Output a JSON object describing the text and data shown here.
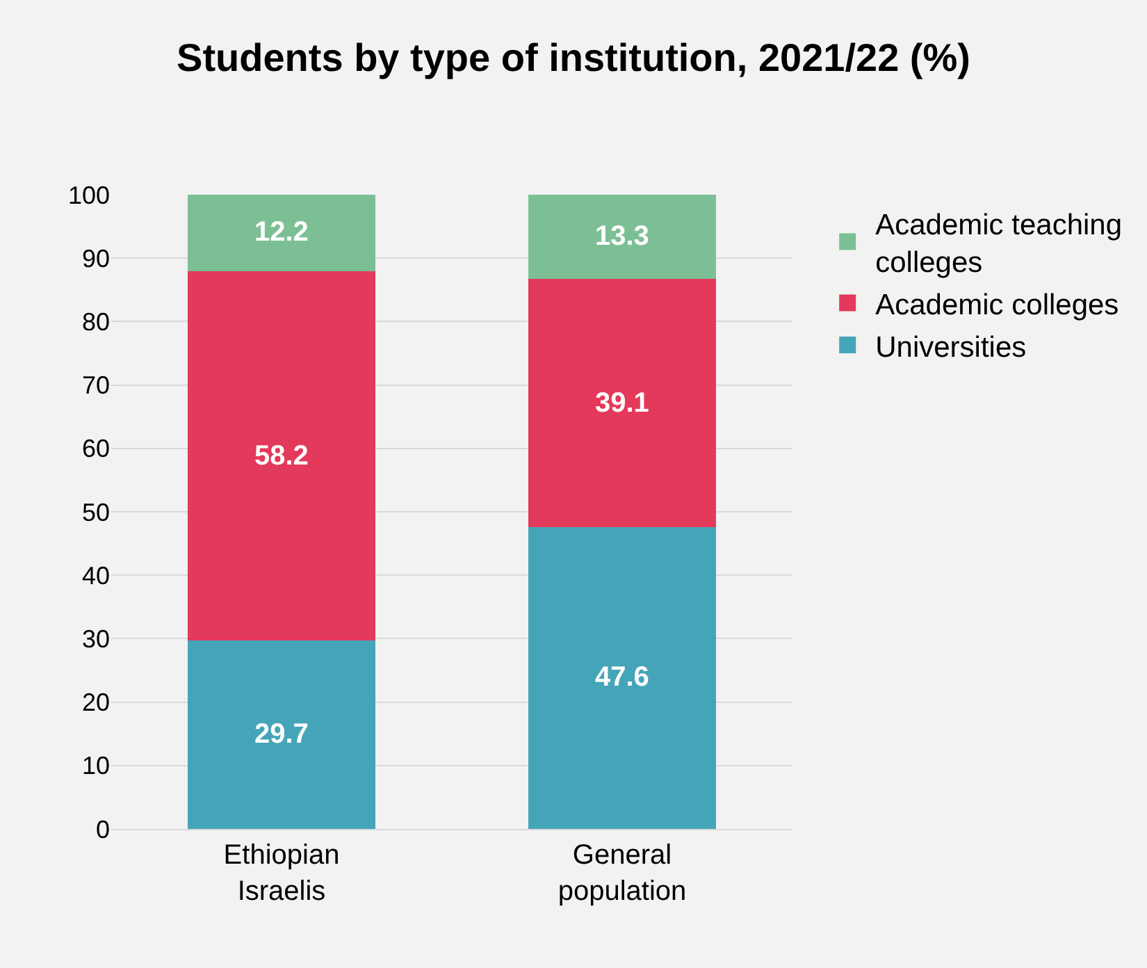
{
  "chart_data": {
    "type": "bar",
    "title": "Students by type of institution, 2021/22 (%)",
    "categories": [
      "Ethiopian Israelis",
      "General population"
    ],
    "series": [
      {
        "name": "Universities",
        "color": "#45a5b8",
        "values": [
          29.7,
          47.6
        ]
      },
      {
        "name": "Academic colleges",
        "color": "#e3395a",
        "values": [
          58.2,
          39.1
        ]
      },
      {
        "name": "Academic teaching colleges",
        "color": "#7dbf95",
        "values": [
          12.2,
          13.3
        ]
      }
    ],
    "stacked": true,
    "data_labels": true,
    "ylim": [
      0,
      100
    ],
    "yticks": [
      0,
      10,
      20,
      30,
      40,
      50,
      60,
      70,
      80,
      90,
      100
    ],
    "grid": "y",
    "legend": "right"
  }
}
